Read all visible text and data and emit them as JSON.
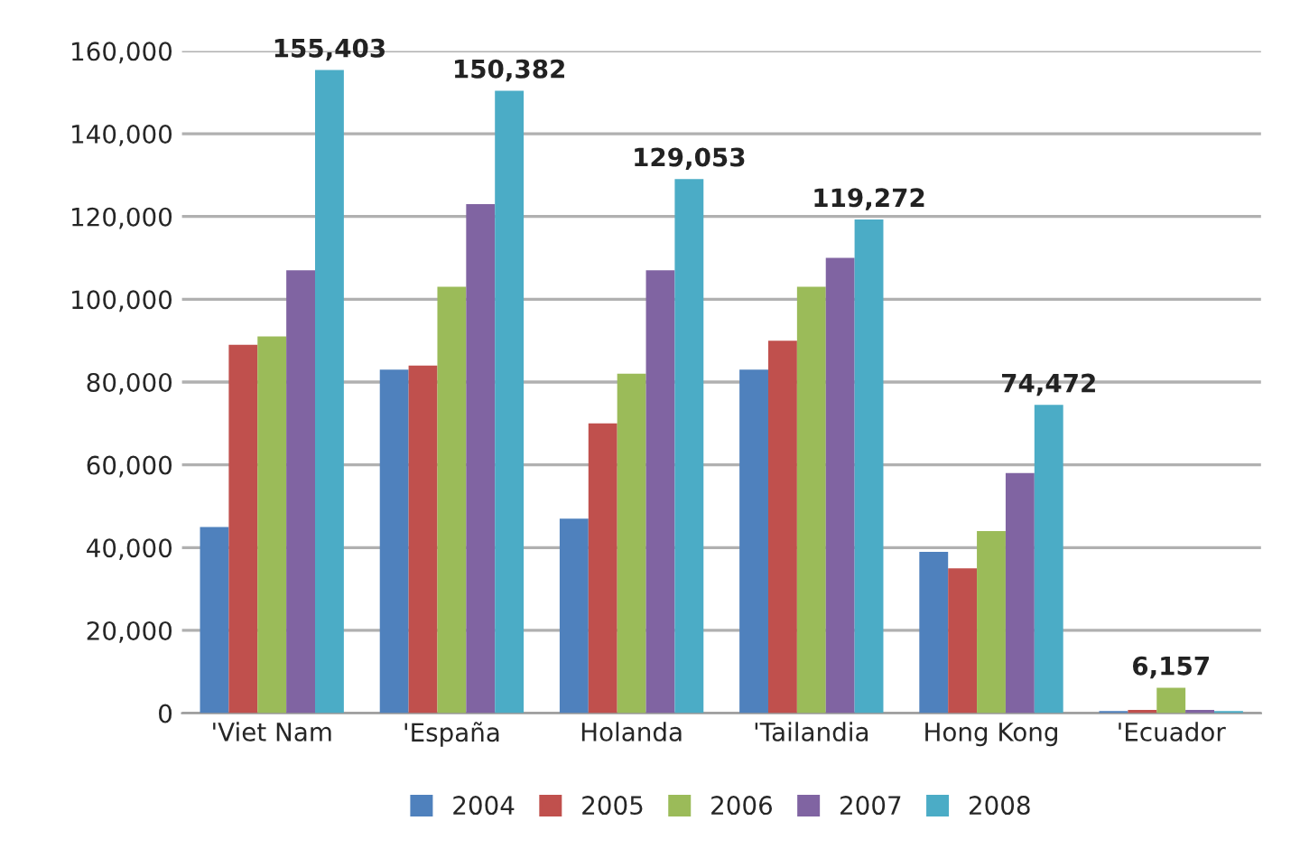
{
  "chart_data": {
    "type": "bar",
    "categories": [
      "'Viet Nam",
      "'España",
      "Holanda",
      "'Tailandia",
      "Hong Kong",
      "'Ecuador"
    ],
    "series": [
      {
        "name": "2004",
        "color": "#4f81bd",
        "values": [
          45000,
          83000,
          47000,
          83000,
          39000,
          500
        ]
      },
      {
        "name": "2005",
        "color": "#c0504d",
        "values": [
          89000,
          84000,
          70000,
          90000,
          35000,
          800
        ]
      },
      {
        "name": "2006",
        "color": "#9bbb59",
        "values": [
          91000,
          103000,
          82000,
          103000,
          44000,
          6157
        ],
        "value_labels": [
          null,
          null,
          null,
          null,
          null,
          "6,157"
        ]
      },
      {
        "name": "2007",
        "color": "#8064a2",
        "values": [
          107000,
          123000,
          107000,
          110000,
          58000,
          800
        ]
      },
      {
        "name": "2008",
        "color": "#4bacc6",
        "values": [
          155403,
          150382,
          129053,
          119272,
          74472,
          500
        ],
        "value_labels": [
          "155,403",
          "150,382",
          "129,053",
          "119,272",
          "74,472",
          null
        ]
      }
    ],
    "ylim": [
      0,
      160000
    ],
    "yticks": [
      {
        "value": 0,
        "label": "0"
      },
      {
        "value": 20000,
        "label": "20,000"
      },
      {
        "value": 40000,
        "label": "40,000"
      },
      {
        "value": 60000,
        "label": "60,000"
      },
      {
        "value": 80000,
        "label": "80,000"
      },
      {
        "value": 100000,
        "label": "100,000"
      },
      {
        "value": 120000,
        "label": "120,000"
      },
      {
        "value": 140000,
        "label": "140,000"
      },
      {
        "value": 160000,
        "label": "160,000"
      }
    ],
    "grid": "y",
    "legend": "bottom"
  }
}
